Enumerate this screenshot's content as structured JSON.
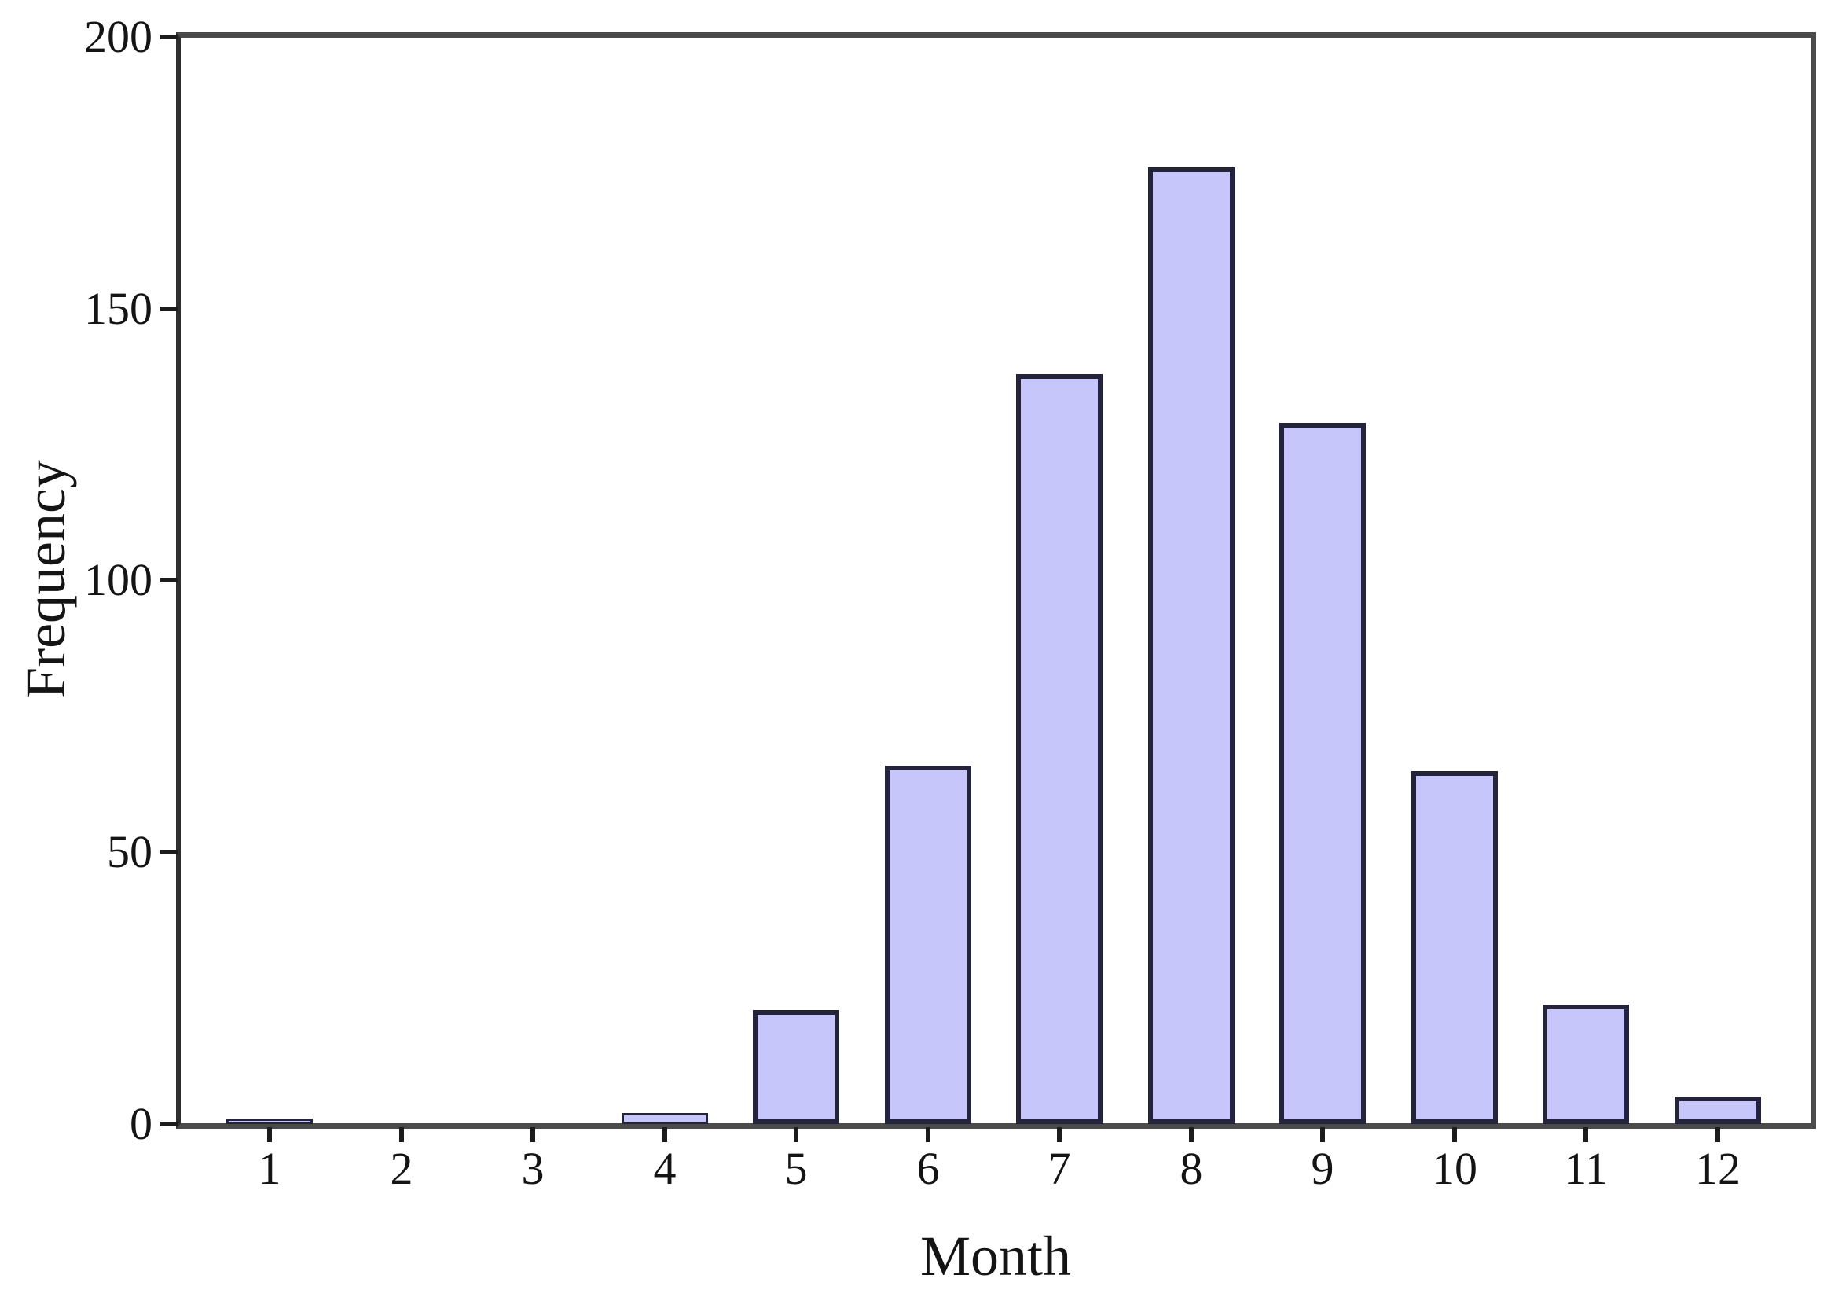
{
  "figure": {
    "background_color": "#ffffff",
    "text_color": "#141414"
  },
  "chart_data": {
    "type": "bar",
    "title": "",
    "xlabel": "Month",
    "ylabel": "Frequency",
    "categories": [
      "1",
      "2",
      "3",
      "4",
      "5",
      "6",
      "7",
      "8",
      "9",
      "10",
      "11",
      "12"
    ],
    "values": [
      1,
      0,
      0,
      2,
      21,
      66,
      138,
      176,
      129,
      65,
      22,
      5
    ],
    "ylim": [
      0,
      200
    ],
    "yticks": [
      0,
      50,
      100,
      150,
      200
    ],
    "grid": false,
    "legend": "none",
    "bar_fill_color": "#c7c6fa",
    "bar_border_color": "#23233c",
    "axis_frame_color": "#4b4b4b",
    "tick_mark_color": "#1c1c1c"
  }
}
